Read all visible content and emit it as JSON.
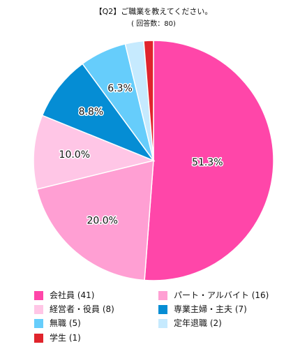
{
  "chart_data": {
    "type": "pie",
    "title": "【Q2】ご職業を教えてください。",
    "subtitle": "( 回答数：80)",
    "slices": [
      {
        "label": "会社員 (41)",
        "count": 41,
        "value": 51.3,
        "value_label": "51.3%",
        "color": "#ff46a9"
      },
      {
        "label": "パート・アルバイト (16)",
        "count": 16,
        "value": 20.0,
        "value_label": "20.0%",
        "color": "#ff9fd3"
      },
      {
        "label": "経営者・役員 (8)",
        "count": 8,
        "value": 10.0,
        "value_label": "10.0%",
        "color": "#ffc6e6"
      },
      {
        "label": "専業主婦・主夫 (7)",
        "count": 7,
        "value": 8.8,
        "value_label": "8.8%",
        "color": "#058dd4"
      },
      {
        "label": "無職 (5)",
        "count": 5,
        "value": 6.3,
        "value_label": "6.3%",
        "color": "#66cdfb"
      },
      {
        "label": "定年退職 (2)",
        "count": 2,
        "value": 2.5,
        "value_label": "",
        "color": "#c6eafe"
      },
      {
        "label": "学生 (1)",
        "count": 1,
        "value": 1.3,
        "value_label": "",
        "color": "#e0242c"
      }
    ],
    "start_angle": "12 o'clock",
    "direction": "clockwise",
    "legend_position": "bottom"
  }
}
